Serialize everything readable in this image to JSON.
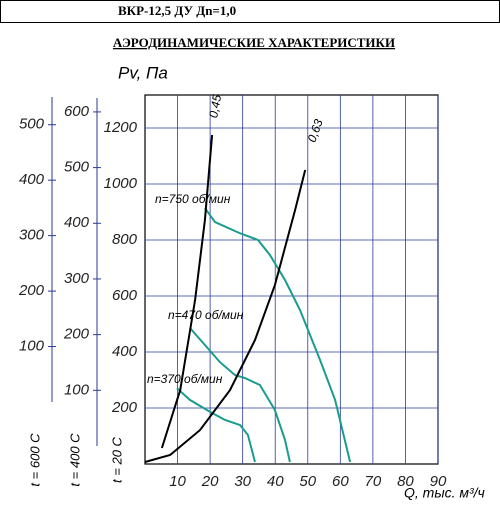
{
  "chart_data": {
    "type": "line",
    "header": "ВКР-12,5 ДУ Дn=1,0",
    "title": "АЭРОДИНАМИЧЕСКИЕ ХАРАКТЕРИСТИКИ",
    "ylabel": "Pv, Па",
    "xlabel": "Q, тыс. м³/ч",
    "y_axis_label": "t = 20 С",
    "xlim": [
      0,
      90
    ],
    "xticks": [
      10,
      20,
      30,
      40,
      50,
      60,
      70,
      80,
      90
    ],
    "ylim": [
      0,
      1300
    ],
    "yticks": [
      200,
      400,
      600,
      800,
      1000,
      1200
    ],
    "grid": true,
    "extra_axes": [
      {
        "label": "t = 600 С",
        "ylim": [
          0,
          550
        ],
        "yticks": [
          100,
          200,
          300,
          400,
          500
        ]
      },
      {
        "label": "t = 400 С",
        "ylim": [
          0,
          625
        ],
        "yticks": [
          100,
          200,
          300,
          400,
          500,
          600
        ]
      }
    ],
    "series": [
      {
        "name": "n=750 об/мин",
        "color": "#1a9c8c",
        "x": [
          18.4,
          21.5,
          29,
          34.7,
          38.4,
          43,
          47.6,
          53.8,
          58.4,
          63
        ],
        "values": [
          914,
          864,
          825,
          800,
          746,
          657,
          550,
          371,
          229,
          7
        ]
      },
      {
        "name": "n=470 об/мин",
        "color": "#1a9c8c",
        "x": [
          13.8,
          18.4,
          23,
          27.6,
          30.7,
          35.3,
          39.9,
          43,
          44.5
        ],
        "values": [
          486,
          425,
          364,
          318,
          307,
          282,
          193,
          86,
          7
        ]
      },
      {
        "name": "n=370 об/мин",
        "color": "#1a9c8c",
        "x": [
          9.8,
          13.8,
          20,
          24.6,
          29.2,
          31.6,
          33.8
        ],
        "values": [
          271,
          229,
          186,
          157,
          139,
          104,
          7
        ]
      },
      {
        "name": "0,45",
        "color": "#000000",
        "x": [
          5.2,
          10.8,
          15.4,
          18.4,
          20.6
        ],
        "values": [
          57,
          264,
          586,
          871,
          1175
        ]
      },
      {
        "name": "0,63",
        "color": "#000000",
        "x": [
          0,
          7.7,
          16.9,
          26.1,
          33.8,
          39.9,
          46.1,
          49.2
        ],
        "values": [
          7,
          32,
          121,
          264,
          443,
          639,
          907,
          1050
        ]
      }
    ]
  }
}
